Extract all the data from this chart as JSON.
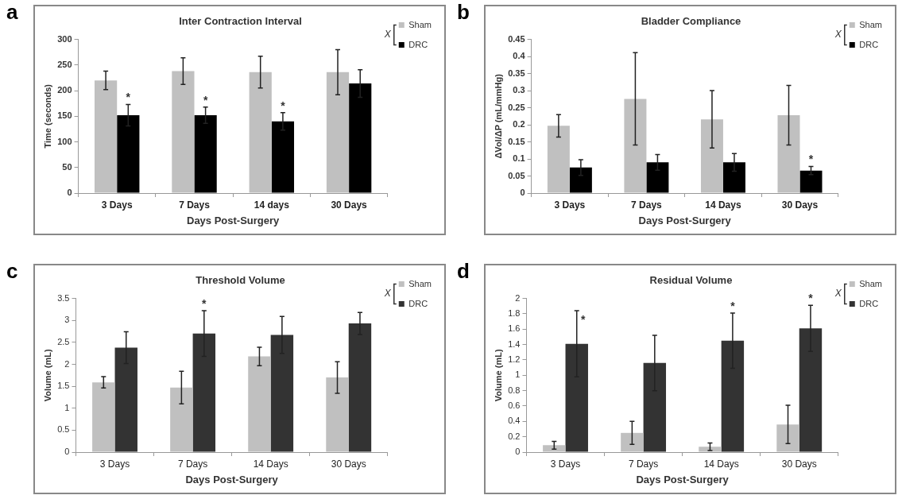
{
  "chart_data": [
    {
      "type": "bar",
      "title": "Inter Contraction Interval",
      "xlabel": "Days Post-Surgery",
      "ylabel": "Time (seconds)",
      "categories": [
        "3 Days",
        "7 Days",
        "14 days",
        "30 Days"
      ],
      "series": [
        {
          "name": "Sham",
          "color": "#c0c0c0",
          "values": [
            220,
            238,
            236,
            236
          ],
          "errors": [
            18,
            26,
            31,
            44
          ]
        },
        {
          "name": "DRC",
          "color": "#000000",
          "values": [
            152,
            152,
            140,
            214
          ],
          "errors": [
            21,
            16,
            17,
            27
          ]
        }
      ],
      "ylim": [
        0,
        300
      ],
      "yticks": [
        0,
        50,
        100,
        150,
        200,
        250,
        300
      ],
      "grid": false,
      "legend": "top right",
      "annotations": [
        "a",
        "X",
        {
          "text": "*",
          "x": "3 Days",
          "y": 173
        },
        {
          "text": "*",
          "x": "7 Days",
          "y": 168
        },
        {
          "text": "*",
          "x": "14 days",
          "y": 157
        }
      ]
    },
    {
      "type": "bar",
      "title": "Bladder Compliance",
      "xlabel": "Days Post-Surgery",
      "ylabel": "ΔVol/ΔP (mL/mmHg)",
      "categories": [
        "3 Days",
        "7 Days",
        "14 Days",
        "30 Days"
      ],
      "series": [
        {
          "name": "Sham",
          "color": "#c0c0c0",
          "values": [
            0.197,
            0.276,
            0.216,
            0.228
          ],
          "errors": [
            0.033,
            0.135,
            0.084,
            0.087
          ]
        },
        {
          "name": "DRC",
          "color": "#000000",
          "values": [
            0.075,
            0.09,
            0.09,
            0.066
          ],
          "errors": [
            0.023,
            0.023,
            0.026,
            0.012
          ]
        }
      ],
      "ylim": [
        0,
        0.45
      ],
      "yticks": [
        0,
        0.05,
        0.1,
        0.15,
        0.2,
        0.25,
        0.3,
        0.35,
        0.4,
        0.45
      ],
      "grid": false,
      "legend": "top right",
      "annotations": [
        "b",
        "X",
        {
          "text": "*",
          "x": "30 Days",
          "y": 0.078
        }
      ]
    },
    {
      "type": "bar",
      "title": "Threshold Volume",
      "xlabel": "Days Post-Surgery",
      "ylabel": "Volume (mL)",
      "categories": [
        "3 Days",
        "7 Days",
        "14 Days",
        "30 Days"
      ],
      "series": [
        {
          "name": "Sham",
          "color": "#c0c0c0",
          "values": [
            1.59,
            1.47,
            2.18,
            1.7
          ],
          "errors": [
            0.13,
            0.37,
            0.21,
            0.36
          ]
        },
        {
          "name": "DRC",
          "color": "#333333",
          "values": [
            2.38,
            2.7,
            2.67,
            2.93
          ],
          "errors": [
            0.36,
            0.52,
            0.42,
            0.25
          ]
        }
      ],
      "ylim": [
        0,
        3.5
      ],
      "yticks": [
        0,
        0.5,
        1,
        1.5,
        2,
        2.5,
        3,
        3.5
      ],
      "grid": false,
      "legend": "top right",
      "annotations": [
        "c",
        "X",
        {
          "text": "*",
          "x": "7 Days",
          "y": 2.7
        }
      ]
    },
    {
      "type": "bar",
      "title": "Residual Volume",
      "xlabel": "Days Post-Surgery",
      "ylabel": "Volume (mL)",
      "categories": [
        "3 Days",
        "7 Days",
        "14 Days",
        "30 Days"
      ],
      "series": [
        {
          "name": "Sham",
          "color": "#c0c0c0",
          "values": [
            0.09,
            0.25,
            0.07,
            0.36
          ],
          "errors": [
            0.05,
            0.15,
            0.05,
            0.25
          ]
        },
        {
          "name": "DRC",
          "color": "#333333",
          "values": [
            1.41,
            1.16,
            1.45,
            1.61
          ],
          "errors": [
            0.43,
            0.36,
            0.36,
            0.3
          ]
        }
      ],
      "ylim": [
        0,
        2
      ],
      "yticks": [
        0,
        0.2,
        0.4,
        0.6,
        0.8,
        1,
        1.2,
        1.4,
        1.6,
        1.8,
        2
      ],
      "grid": false,
      "legend": "top right",
      "annotations": [
        "d",
        "X",
        {
          "text": "*",
          "x": "3 Days",
          "y": 1.41
        },
        {
          "text": "*",
          "x": "14 Days",
          "y": 1.45
        },
        {
          "text": "*",
          "x": "30 Days",
          "y": 1.61
        }
      ]
    }
  ]
}
